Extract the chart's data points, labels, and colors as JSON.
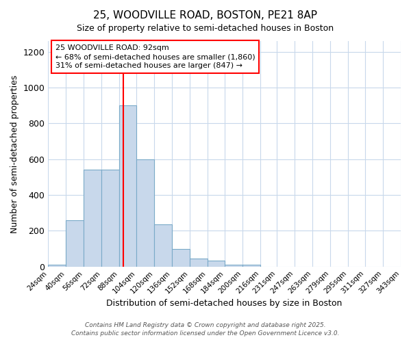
{
  "title_line1": "25, WOODVILLE ROAD, BOSTON, PE21 8AP",
  "title_line2": "Size of property relative to semi-detached houses in Boston",
  "xlabel": "Distribution of semi-detached houses by size in Boston",
  "ylabel": "Number of semi-detached properties",
  "categories": [
    "24sqm",
    "40sqm",
    "56sqm",
    "72sqm",
    "88sqm",
    "104sqm",
    "120sqm",
    "136sqm",
    "152sqm",
    "168sqm",
    "184sqm",
    "200sqm",
    "216sqm",
    "231sqm",
    "247sqm",
    "263sqm",
    "279sqm",
    "295sqm",
    "311sqm",
    "327sqm",
    "343sqm"
  ],
  "bar_lefts": [
    24,
    40,
    56,
    72,
    88,
    104,
    120,
    136,
    152,
    168,
    184,
    200,
    216,
    231,
    247,
    263,
    279,
    295,
    311,
    327
  ],
  "bar_widths": [
    16,
    16,
    16,
    16,
    16,
    16,
    16,
    16,
    16,
    16,
    16,
    16,
    15,
    16,
    16,
    16,
    16,
    16,
    16,
    16
  ],
  "bar_heights": [
    10,
    260,
    540,
    540,
    900,
    600,
    235,
    100,
    45,
    35,
    10,
    10,
    0,
    0,
    0,
    0,
    0,
    0,
    0,
    0
  ],
  "bar_color": "#c8d8eb",
  "bar_edge_color": "#7aaac8",
  "red_line_x": 92,
  "xlim_left": 24,
  "xlim_right": 343,
  "ylim": [
    0,
    1260
  ],
  "yticks": [
    0,
    200,
    400,
    600,
    800,
    1000,
    1200
  ],
  "annotation_title": "25 WOODVILLE ROAD: 92sqm",
  "annotation_line2": "← 68% of semi-detached houses are smaller (1,860)",
  "annotation_line3": "31% of semi-detached houses are larger (847) →",
  "footer_line1": "Contains HM Land Registry data © Crown copyright and database right 2025.",
  "footer_line2": "Contains public sector information licensed under the Open Government Licence v3.0.",
  "background_color": "#ffffff",
  "grid_color": "#c8d8eb"
}
